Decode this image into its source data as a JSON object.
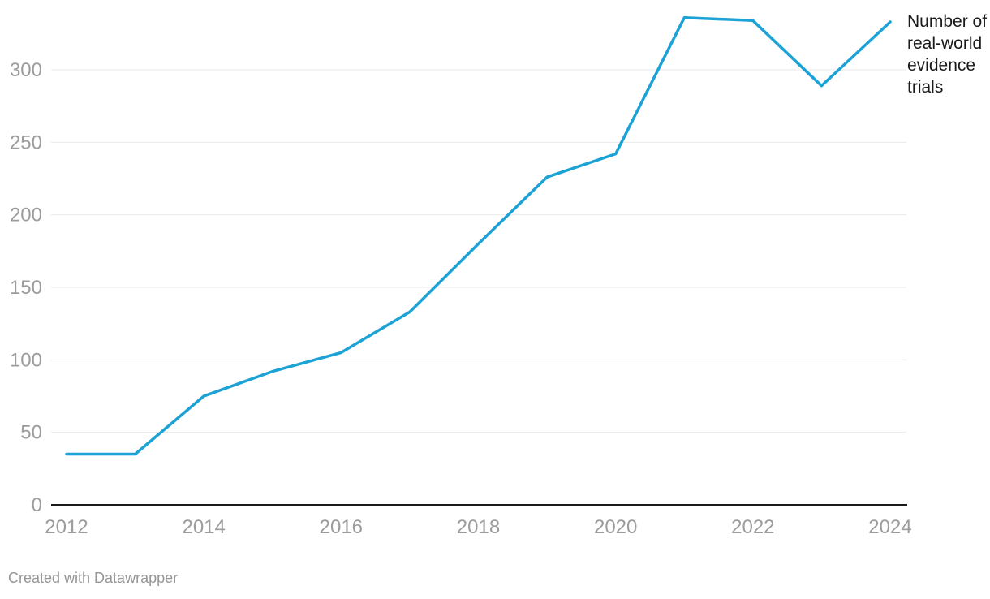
{
  "chart_data": {
    "type": "line",
    "x": [
      2012,
      2013,
      2014,
      2015,
      2016,
      2017,
      2018,
      2019,
      2020,
      2021,
      2022,
      2023,
      2024
    ],
    "series": [
      {
        "name": "Number of real-world evidence trials",
        "values": [
          35,
          35,
          75,
          92,
          105,
          133,
          180,
          226,
          242,
          336,
          334,
          289,
          333
        ]
      }
    ],
    "title": "",
    "xlabel": "",
    "ylabel": "",
    "ylim": [
      0,
      340
    ],
    "yticks": [
      0,
      50,
      100,
      150,
      200,
      250,
      300
    ],
    "xticks": [
      2012,
      2014,
      2016,
      2018,
      2020,
      2022,
      2024
    ],
    "grid": "horizontal",
    "legend_position": "right-of-line-end",
    "colors": {
      "line": "#1ca2d5",
      "gridline": "#e9e9e9",
      "baseline": "#1a1a1a",
      "tick_label": "#9c9c9c",
      "series_label": "#1a1a1a",
      "credit": "#969696"
    }
  },
  "footer": {
    "credit": "Created with Datawrapper"
  }
}
